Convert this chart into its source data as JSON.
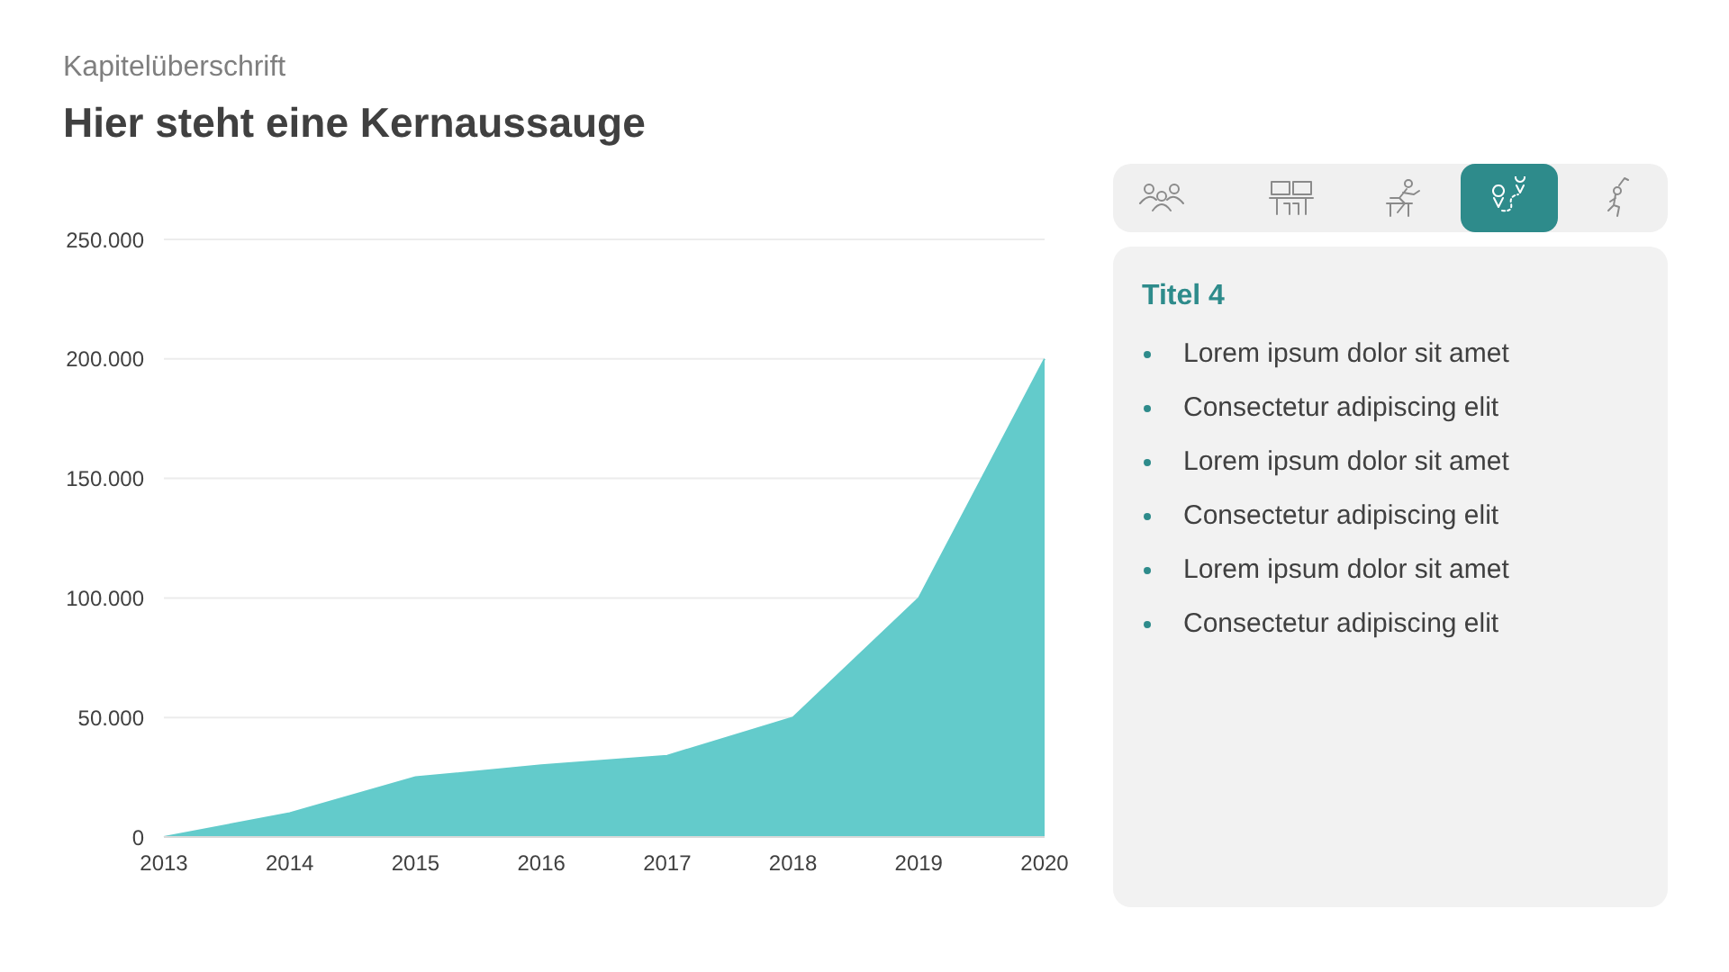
{
  "chart_data": [
    {
      "type": "area",
      "subtitle": "Kapitelüberschrift",
      "title": "Hier steht eine Kernaussauge",
      "categories": [
        "2013",
        "2014",
        "2015",
        "2016",
        "2017",
        "2018",
        "2019",
        "2020"
      ],
      "values": [
        0,
        10000,
        25000,
        30000,
        34000,
        50000,
        100000,
        200000
      ],
      "color": "#63cbcb",
      "ylim": [
        0,
        250000
      ],
      "yticks": [
        0,
        {
          "value": 50000,
          "label": "50.000"
        },
        {
          "value": 100000,
          "label": "100.000"
        },
        {
          "value": 150000,
          "label": "150.000"
        },
        {
          "value": 200000,
          "label": "200.000"
        },
        {
          "value": 250000,
          "label": "250.000"
        }
      ],
      "grid": "y"
    },
    {
      "type": "other",
      "title": "Titel 4",
      "annotations": [
        "Lorem ipsum dolor sit amet",
        "Consectetur adipiscing elit",
        "Lorem ipsum dolor sit amet",
        "Consectetur adipiscing elit",
        "Lorem ipsum dolor sit amet",
        "Consectetur adipiscing elit"
      ]
    }
  ]
}
